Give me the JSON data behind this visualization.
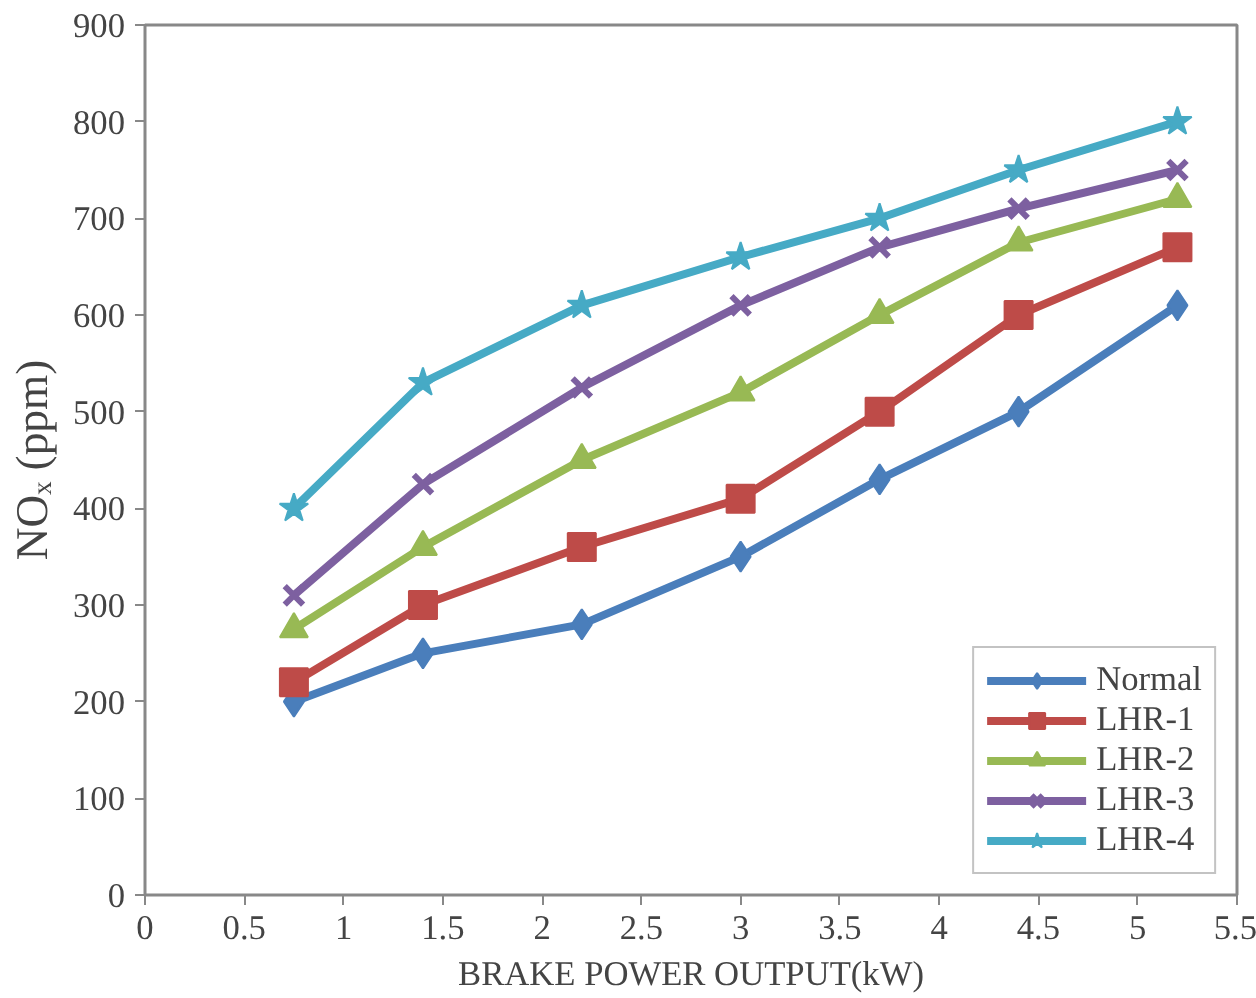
{
  "chart_data": {
    "type": "line",
    "xlabel": "BRAKE POWER OUTPUT(kW)",
    "ylabel": "NOₓ (ppm)",
    "x": [
      0.75,
      1.4,
      2.2,
      3,
      3.7,
      4.4,
      5.2
    ],
    "xlim": [
      0,
      5.5
    ],
    "xticks": [
      0,
      0.5,
      1,
      1.5,
      2,
      2.5,
      3,
      3.5,
      4,
      4.5,
      5,
      5.5
    ],
    "ylim": [
      0,
      900
    ],
    "yticks": [
      0,
      100,
      200,
      300,
      400,
      500,
      600,
      700,
      800,
      900
    ],
    "grid": false,
    "legend": "bottom right",
    "line_style": "solid",
    "series": [
      {
        "name": "Normal",
        "color": "#4a7ebb",
        "marker": "diamond",
        "values": [
          200,
          250,
          280,
          350,
          430,
          500,
          610
        ]
      },
      {
        "name": "LHR-1",
        "color": "#be4b48",
        "marker": "square",
        "values": [
          220,
          300,
          360,
          410,
          500,
          600,
          670
        ]
      },
      {
        "name": "LHR-2",
        "color": "#98b954",
        "marker": "triangle",
        "values": [
          275,
          360,
          450,
          520,
          600,
          675,
          720
        ]
      },
      {
        "name": "LHR-3",
        "color": "#7d60a0",
        "marker": "cross",
        "values": [
          310,
          425,
          525,
          610,
          670,
          710,
          750
        ]
      },
      {
        "name": "LHR-4",
        "color": "#46aac5",
        "marker": "star",
        "values": [
          400,
          530,
          610,
          660,
          700,
          750,
          800
        ]
      }
    ]
  }
}
